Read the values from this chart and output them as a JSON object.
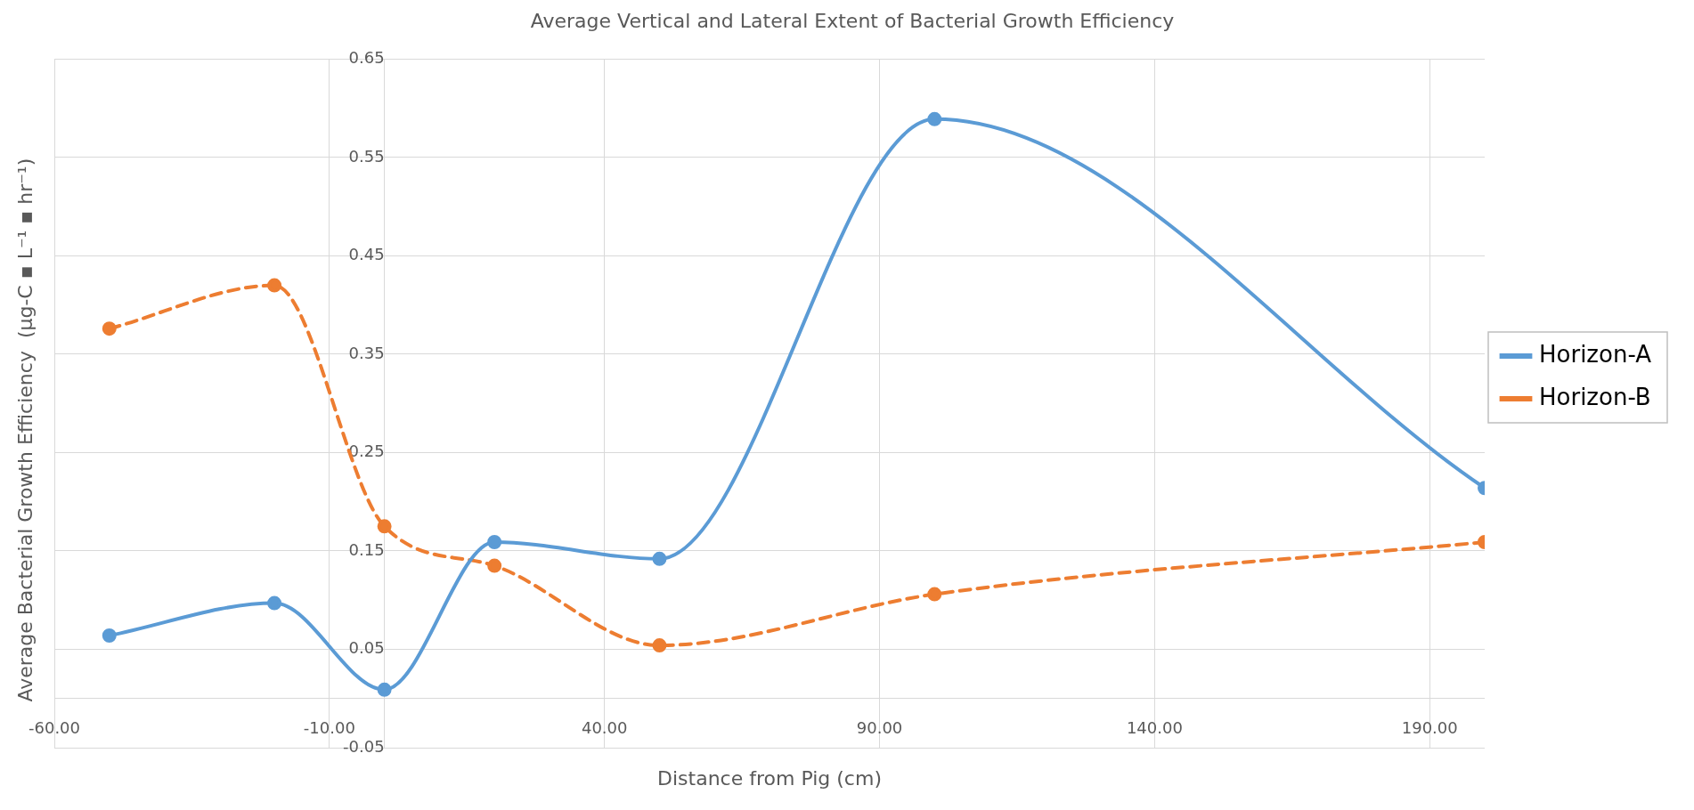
{
  "chart_data": {
    "type": "line",
    "title": "Average Vertical and Lateral Extent of Bacterial Growth Efficiency",
    "xlabel": "Distance from Pig (cm)",
    "ylabel": "Average Bacterial Growth Efficiency  (µg-C ▪ L⁻¹ ▪ hr⁻¹)",
    "x": [
      -50,
      -20,
      0,
      20,
      50,
      100,
      200
    ],
    "series": [
      {
        "name": "Horizon-A",
        "color": "#5b9bd5",
        "line_style": "solid",
        "values": [
          0.064,
          0.097,
          0.009,
          0.159,
          0.142,
          0.589,
          0.214
        ]
      },
      {
        "name": "Horizon-B",
        "color": "#ed7d31",
        "line_style": "dashed",
        "values": [
          0.376,
          0.42,
          0.175,
          0.135,
          0.054,
          0.106,
          0.159
        ]
      }
    ],
    "xlim": [
      -60,
      200
    ],
    "xticks": [
      {
        "value": -60,
        "label": "-60.00"
      },
      {
        "value": -10,
        "label": "-10.00"
      },
      {
        "value": 40,
        "label": "40.00"
      },
      {
        "value": 90,
        "label": "90.00"
      },
      {
        "value": 140,
        "label": "140.00"
      },
      {
        "value": 190,
        "label": "190.00"
      }
    ],
    "ylim": [
      -0.05,
      0.65
    ],
    "yticks": [
      -0.05,
      0.05,
      0.15,
      0.25,
      0.35,
      0.45,
      0.55,
      0.65
    ],
    "grid": true,
    "legend": "right",
    "marker": "circle"
  }
}
